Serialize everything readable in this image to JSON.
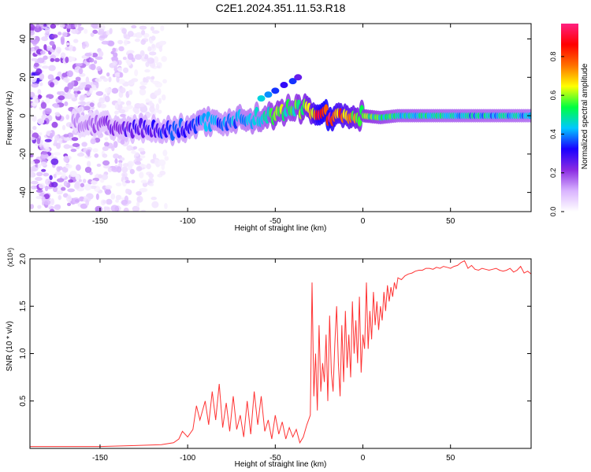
{
  "title": "C2E1.2024.351.11.53.R18",
  "chart_data": [
    {
      "type": "heatmap",
      "xlabel": "Height of straight line (km)",
      "ylabel": "Frequency (Hz)",
      "xlim": [
        -190,
        96
      ],
      "ylim": [
        -50,
        48
      ],
      "xticks": [
        -150,
        -100,
        -50,
        0,
        50
      ],
      "yticks": [
        -40,
        -20,
        0,
        20,
        40
      ],
      "colorbar": {
        "label": "Normalized spectral amplitude",
        "range": [
          0,
          0.97
        ],
        "ticks": [
          0.0,
          0.2,
          0.4,
          0.6,
          0.8
        ],
        "colors": [
          "#ffffff",
          "#d9b3ff",
          "#8a2be2",
          "#1a00ff",
          "#00c8ff",
          "#00ff40",
          "#ffff00",
          "#ff7000",
          "#ff0000",
          "#ff2080"
        ]
      },
      "ridge": {
        "x": [
          -160,
          -150,
          -140,
          -130,
          -120,
          -110,
          -100,
          -90,
          -80,
          -70,
          -60,
          -55,
          -50,
          -40,
          -30,
          -25,
          -20,
          -15,
          -10,
          -5,
          0,
          10,
          20,
          40,
          60,
          80,
          95
        ],
        "freq": [
          -4,
          -4,
          -8,
          -6,
          -7,
          -8,
          -6,
          -3,
          -3,
          -2,
          -1,
          0,
          0,
          4,
          3,
          1,
          0,
          0,
          0,
          -1,
          0,
          -1,
          0,
          0,
          0,
          0,
          0
        ],
        "amplitude": [
          0.15,
          0.2,
          0.25,
          0.28,
          0.3,
          0.35,
          0.35,
          0.4,
          0.38,
          0.42,
          0.45,
          0.5,
          0.6,
          0.55,
          0.7,
          0.9,
          0.95,
          0.8,
          0.75,
          0.7,
          0.6,
          0.55,
          0.5,
          0.48,
          0.47,
          0.46,
          0.45
        ]
      },
      "branch": {
        "x": [
          -58,
          -54,
          -50,
          -45,
          -40,
          -37
        ],
        "freq": [
          9,
          11,
          13,
          16,
          18,
          20
        ],
        "amplitude": [
          0.45,
          0.4,
          0.35,
          0.3,
          0.35,
          0.25
        ]
      }
    },
    {
      "type": "line",
      "xlabel": "Height of straight line (km)",
      "ylabel": "SNR (10 * v/v)",
      "y_multiplier": "(x10⁴)",
      "xlim": [
        -190,
        96
      ],
      "ylim": [
        0,
        2.0
      ],
      "xticks": [
        -150,
        -100,
        -50,
        0,
        50
      ],
      "yticks": [
        0.5,
        1.0,
        1.5,
        2.0
      ],
      "ytick_labels": [
        "0.5",
        "1.0",
        "1.5",
        "2.0"
      ],
      "color": "#ff3333",
      "series": [
        {
          "x": [
            -190,
            -170,
            -150,
            -130,
            -115,
            -108,
            -105,
            -103,
            -100,
            -97,
            -95,
            -93,
            -90,
            -88,
            -86,
            -84,
            -82,
            -80,
            -78,
            -76,
            -74,
            -72,
            -70,
            -68,
            -66,
            -64,
            -62,
            -60,
            -58,
            -56,
            -54,
            -52,
            -50,
            -48,
            -46,
            -44,
            -42,
            -40,
            -38,
            -36,
            -34,
            -32,
            -30,
            -29,
            -28,
            -27,
            -26,
            -25,
            -24,
            -23,
            -22,
            -21,
            -20,
            -19,
            -18,
            -17,
            -16,
            -15,
            -14,
            -13,
            -12,
            -11,
            -10,
            -9,
            -8,
            -7,
            -6,
            -5,
            -4,
            -3,
            -2,
            -1,
            0,
            1,
            2,
            3,
            4,
            5,
            6,
            7,
            8,
            9,
            10,
            11,
            12,
            13,
            14,
            15,
            16,
            17,
            18,
            19,
            20,
            22,
            24,
            26,
            28,
            30,
            32,
            34,
            36,
            38,
            40,
            42,
            44,
            46,
            48,
            50,
            52,
            54,
            56,
            58,
            60,
            62,
            64,
            66,
            68,
            70,
            72,
            74,
            76,
            78,
            80,
            82,
            84,
            86,
            88,
            90,
            92,
            94,
            96
          ],
          "y": [
            0.02,
            0.02,
            0.02,
            0.03,
            0.04,
            0.06,
            0.1,
            0.18,
            0.12,
            0.2,
            0.45,
            0.3,
            0.5,
            0.25,
            0.6,
            0.3,
            0.68,
            0.22,
            0.48,
            0.18,
            0.55,
            0.2,
            0.35,
            0.12,
            0.5,
            0.15,
            0.6,
            0.25,
            0.55,
            0.18,
            0.3,
            0.1,
            0.35,
            0.15,
            0.28,
            0.1,
            0.22,
            0.12,
            0.2,
            0.06,
            0.12,
            0.25,
            0.35,
            1.75,
            0.55,
            1.0,
            0.4,
            1.3,
            0.6,
            0.9,
            0.7,
            1.2,
            0.5,
            1.4,
            0.8,
            0.6,
            1.1,
            1.5,
            0.9,
            0.55,
            1.3,
            0.7,
            1.45,
            0.85,
            1.2,
            0.75,
            1.55,
            1.0,
            1.35,
            0.9,
            1.6,
            0.8,
            1.2,
            1.05,
            1.75,
            1.05,
            1.45,
            1.15,
            1.65,
            1.3,
            1.55,
            1.25,
            1.5,
            1.35,
            1.65,
            1.45,
            1.72,
            1.55,
            1.7,
            1.6,
            1.75,
            1.68,
            1.8,
            1.78,
            1.82,
            1.84,
            1.85,
            1.87,
            1.88,
            1.88,
            1.9,
            1.9,
            1.89,
            1.91,
            1.9,
            1.92,
            1.91,
            1.9,
            1.92,
            1.93,
            1.96,
            1.98,
            1.9,
            1.93,
            1.89,
            1.88,
            1.9,
            1.89,
            1.88,
            1.89,
            1.9,
            1.88,
            1.87,
            1.88,
            1.9,
            1.86,
            1.88,
            1.92,
            1.85,
            1.87,
            1.84
          ]
        }
      ]
    }
  ]
}
